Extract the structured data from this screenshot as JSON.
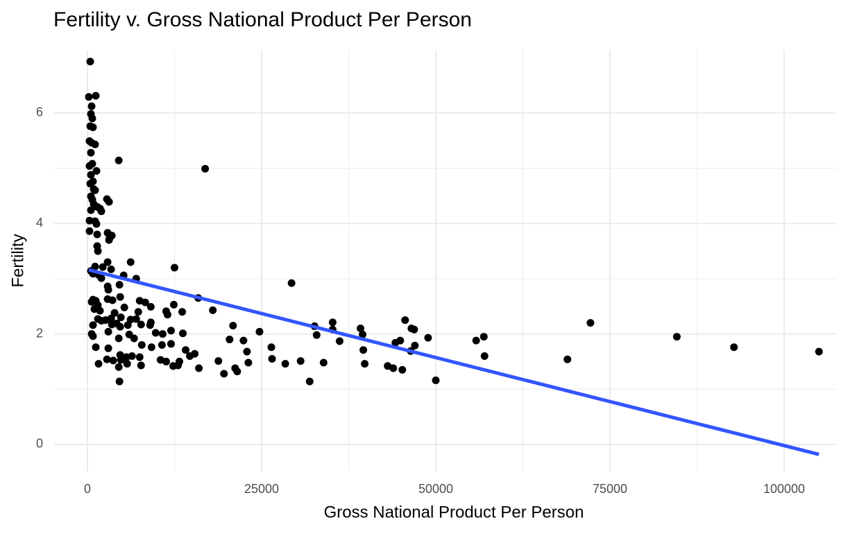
{
  "chart_data": {
    "type": "scatter",
    "title": "Fertility v. Gross National Product Per Person",
    "x_label": "Gross National Product Per Person",
    "y_label": "Fertility",
    "xlim": [
      -4780,
      107470
    ],
    "ylim": [
      -0.49,
      7.14
    ],
    "xticks": [
      0,
      25000,
      50000,
      75000,
      100000
    ],
    "yticks": [
      0,
      2,
      4,
      6
    ],
    "grid": true,
    "color": "#000000",
    "x": [
      400,
      200,
      1200,
      600,
      500,
      700,
      400,
      800,
      300,
      600,
      1100,
      500,
      700,
      300,
      1300,
      500,
      800,
      400,
      900,
      1100,
      500,
      700,
      2800,
      3100,
      900,
      1400,
      1800,
      2000,
      500,
      300,
      1100,
      1300,
      300,
      1400,
      2900,
      3200,
      3500,
      3100,
      1400,
      1500,
      2900,
      6200,
      2200,
      1100,
      500,
      800,
      3400,
      1600,
      2000,
      5200,
      7000,
      12500,
      4500,
      16900,
      29300,
      2900,
      3000,
      4600,
      600,
      800,
      1200,
      1500,
      2900,
      3600,
      4700,
      7500,
      8300,
      9100,
      12400,
      15900,
      5300,
      1000,
      1800,
      3900,
      7300,
      11300,
      11500,
      13600,
      18000,
      1500,
      2000,
      2600,
      3400,
      4800,
      6200,
      7000,
      9100,
      800,
      3500,
      4200,
      4700,
      5800,
      7700,
      9000,
      12000,
      20900,
      24700,
      32600,
      35200,
      45600,
      46500,
      46900,
      39200,
      35200,
      72200,
      600,
      800,
      3000,
      4500,
      6000,
      6700,
      9800,
      10800,
      13700,
      32900,
      39500,
      36200,
      20400,
      22400,
      48900,
      56900,
      55800,
      84600,
      44900,
      44200,
      47000,
      1200,
      3000,
      7800,
      9200,
      10700,
      12000,
      14100,
      26400,
      39600,
      46400,
      92800,
      105000,
      4700,
      5600,
      6400,
      7500,
      13200,
      14700,
      15400,
      2800,
      3700,
      4800,
      10500,
      11300,
      18800,
      26500,
      30600,
      57000,
      68900,
      1600,
      4500,
      5700,
      7700,
      12300,
      13000,
      16000,
      21200,
      23100,
      28400,
      33900,
      39800,
      43100,
      43900,
      45200,
      19600,
      21500,
      22900,
      4600,
      31900,
      50000
    ],
    "values": [
      6.93,
      6.29,
      6.31,
      6.12,
      5.98,
      5.9,
      5.76,
      5.74,
      5.49,
      5.46,
      5.43,
      5.28,
      5.08,
      5.04,
      4.95,
      4.88,
      4.76,
      4.72,
      4.62,
      4.6,
      4.49,
      4.43,
      4.44,
      4.39,
      4.35,
      4.3,
      4.27,
      4.22,
      4.24,
      4.05,
      4.04,
      3.99,
      3.86,
      3.8,
      3.83,
      3.74,
      3.78,
      3.7,
      3.59,
      3.5,
      3.3,
      3.3,
      3.21,
      3.22,
      3.14,
      3.09,
      3.17,
      3.07,
      3.01,
      3.06,
      3.0,
      3.2,
      5.14,
      4.99,
      2.92,
      2.86,
      2.8,
      2.89,
      2.58,
      2.62,
      2.6,
      2.52,
      2.63,
      2.61,
      2.67,
      2.6,
      2.57,
      2.49,
      2.53,
      2.65,
      2.48,
      2.45,
      2.42,
      2.38,
      2.4,
      2.41,
      2.35,
      2.4,
      2.43,
      2.27,
      2.24,
      2.25,
      2.28,
      2.3,
      2.26,
      2.27,
      2.21,
      2.16,
      2.17,
      2.19,
      2.13,
      2.16,
      2.17,
      2.16,
      2.06,
      2.15,
      2.04,
      2.14,
      2.21,
      2.25,
      2.1,
      2.08,
      2.1,
      2.08,
      2.2,
      2.0,
      1.96,
      2.04,
      1.92,
      1.99,
      1.92,
      2.02,
      2.0,
      2.01,
      1.98,
      1.99,
      1.87,
      1.9,
      1.88,
      1.93,
      1.95,
      1.88,
      1.95,
      1.88,
      1.84,
      1.79,
      1.76,
      1.74,
      1.8,
      1.76,
      1.8,
      1.82,
      1.71,
      1.76,
      1.71,
      1.69,
      1.76,
      1.68,
      1.62,
      1.58,
      1.6,
      1.58,
      1.5,
      1.6,
      1.64,
      1.54,
      1.52,
      1.53,
      1.53,
      1.5,
      1.51,
      1.55,
      1.51,
      1.6,
      1.54,
      1.46,
      1.4,
      1.46,
      1.43,
      1.42,
      1.43,
      1.38,
      1.38,
      1.48,
      1.46,
      1.48,
      1.46,
      1.42,
      1.38,
      1.35,
      1.28,
      1.32,
      1.68,
      1.14,
      1.14,
      1.16
    ],
    "trend_line": {
      "color": "#3355ff",
      "x": [
        200,
        105000
      ],
      "values": [
        3.16,
        -0.18
      ]
    }
  }
}
